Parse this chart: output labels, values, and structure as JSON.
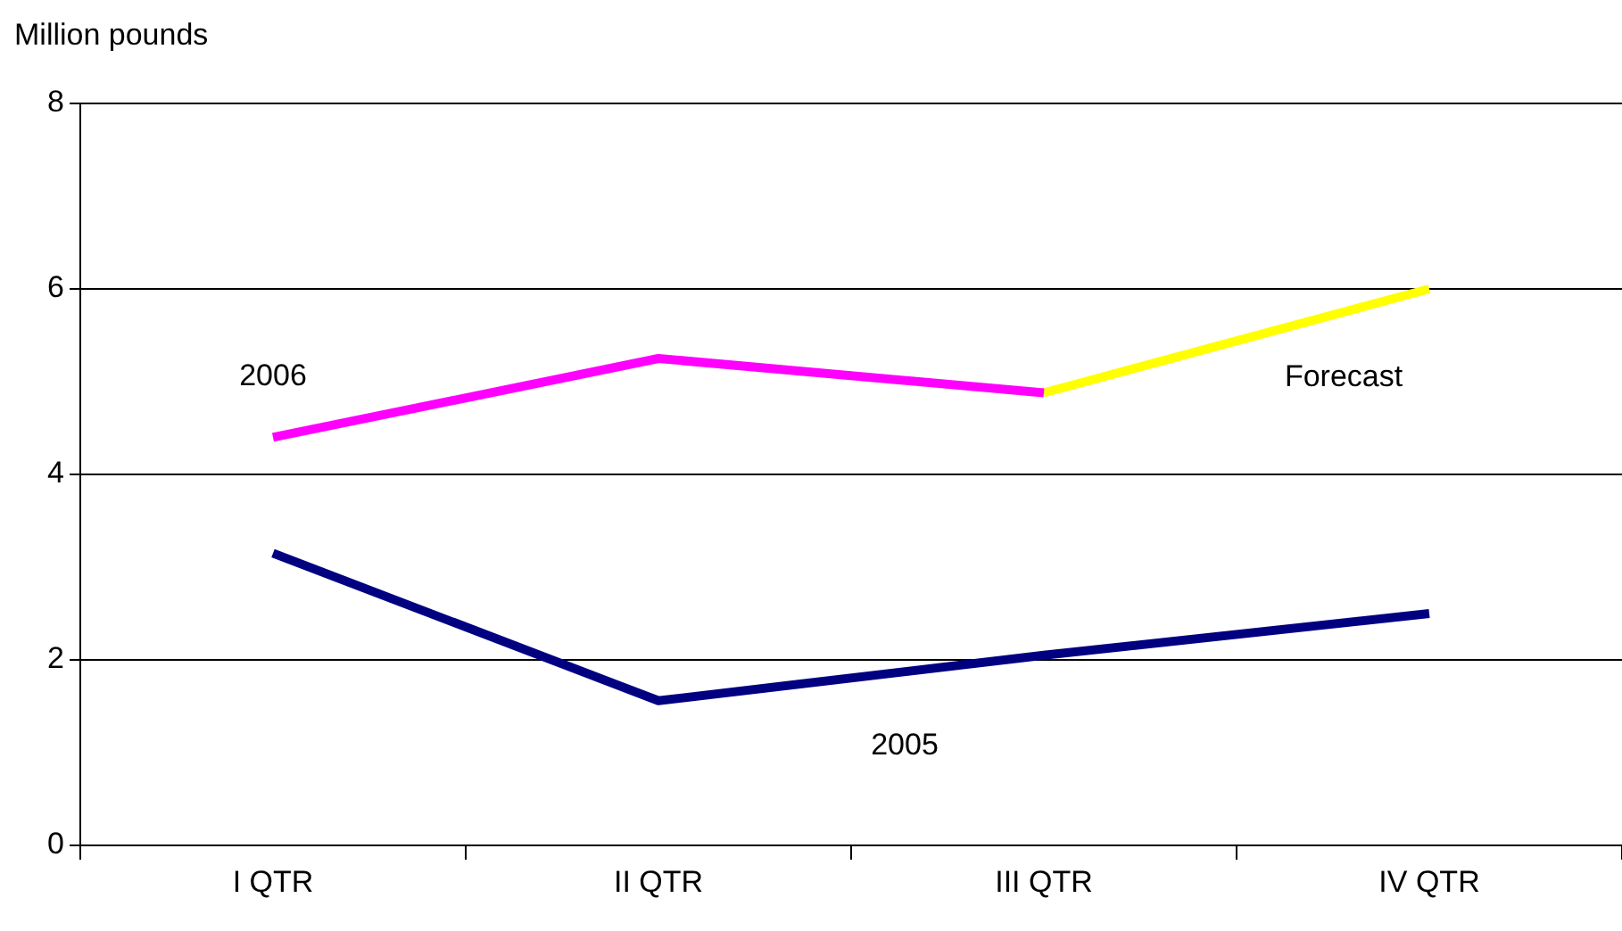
{
  "chart_data": {
    "type": "line",
    "ylabel": "Million pounds",
    "categories": [
      "I QTR",
      "II QTR",
      "III QTR",
      "IV QTR"
    ],
    "series": [
      {
        "name": "2006",
        "color": "#ff00ff",
        "values": [
          4.4,
          5.25,
          4.88,
          null
        ]
      },
      {
        "name": "Forecast",
        "color": "#ffff00",
        "values": [
          null,
          null,
          4.88,
          6.0
        ]
      },
      {
        "name": "2005",
        "color": "#000080",
        "values": [
          3.15,
          1.56,
          2.05,
          2.5
        ]
      }
    ],
    "ylim": [
      0,
      8
    ],
    "yticks": [
      0,
      2,
      4,
      6,
      8
    ],
    "grid": "y",
    "legend": false,
    "marker": "none",
    "line_style": "solid"
  }
}
